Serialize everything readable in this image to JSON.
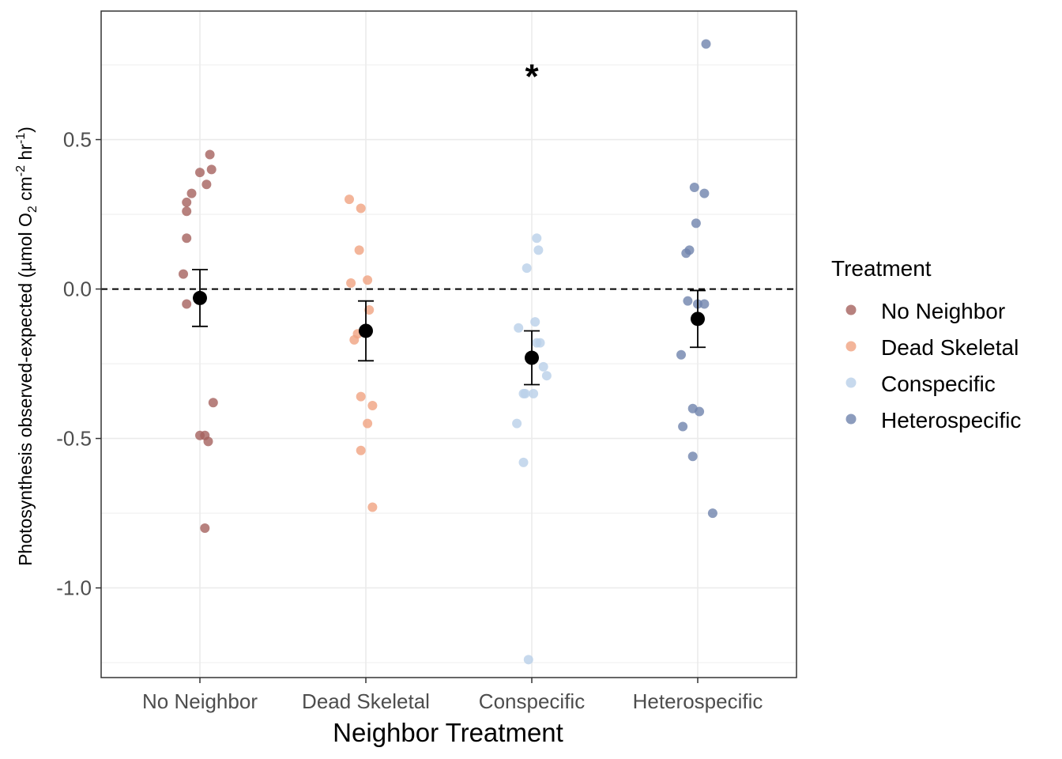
{
  "chart_data": {
    "type": "scatter",
    "title": "",
    "xlabel": "Neighbor Treatment",
    "ylabel": {
      "prefix": "Photosynthesis observed-expected (µmol O",
      "sub": "2",
      "mid": " cm",
      "sup1": "-2",
      "mid2": " hr",
      "sup2": "-1",
      "suffix": ")"
    },
    "categories": [
      "No Neighbor",
      "Dead Skeletal",
      "Conspecific",
      "Heterospecific"
    ],
    "ylim": [
      -1.3,
      0.93
    ],
    "yticks": [
      -1.0,
      -0.5,
      0.0,
      0.5
    ],
    "ytick_labels": [
      "-1.0",
      "-0.5",
      "0.0",
      "0.5"
    ],
    "grid": true,
    "reference_line": {
      "y": 0.0,
      "style": "dashed"
    },
    "legend": {
      "title": "Treatment",
      "position": "right",
      "entries": [
        "No Neighbor",
        "Dead Skeletal",
        "Conspecific",
        "Heterospecific"
      ]
    },
    "annotation": {
      "text": "*",
      "category": "Conspecific",
      "y": 0.73
    },
    "series": [
      {
        "name": "No Neighbor",
        "color": "#a5615e",
        "points": [
          {
            "dx": 0.06,
            "y": 0.45
          },
          {
            "dx": 0.07,
            "y": 0.4
          },
          {
            "dx": 0.0,
            "y": 0.39
          },
          {
            "dx": 0.04,
            "y": 0.35
          },
          {
            "dx": -0.05,
            "y": 0.32
          },
          {
            "dx": -0.08,
            "y": 0.29
          },
          {
            "dx": -0.08,
            "y": 0.26
          },
          {
            "dx": -0.08,
            "y": 0.17
          },
          {
            "dx": -0.1,
            "y": 0.05
          },
          {
            "dx": -0.08,
            "y": -0.05
          },
          {
            "dx": 0.08,
            "y": -0.38
          },
          {
            "dx": 0.0,
            "y": -0.49
          },
          {
            "dx": 0.03,
            "y": -0.49
          },
          {
            "dx": 0.05,
            "y": -0.51
          },
          {
            "dx": 0.03,
            "y": -0.8
          }
        ],
        "mean": -0.03,
        "se": 0.095
      },
      {
        "name": "Dead Skeletal",
        "color": "#f0a381",
        "points": [
          {
            "dx": -0.1,
            "y": 0.3
          },
          {
            "dx": -0.03,
            "y": 0.27
          },
          {
            "dx": -0.04,
            "y": 0.13
          },
          {
            "dx": -0.09,
            "y": 0.02
          },
          {
            "dx": 0.01,
            "y": 0.03
          },
          {
            "dx": 0.02,
            "y": -0.07
          },
          {
            "dx": -0.05,
            "y": -0.15
          },
          {
            "dx": -0.07,
            "y": -0.17
          },
          {
            "dx": -0.03,
            "y": -0.36
          },
          {
            "dx": 0.04,
            "y": -0.39
          },
          {
            "dx": 0.01,
            "y": -0.45
          },
          {
            "dx": -0.03,
            "y": -0.54
          },
          {
            "dx": 0.04,
            "y": -0.73
          }
        ],
        "mean": -0.14,
        "se": 0.1
      },
      {
        "name": "Conspecific",
        "color": "#b9cfe8",
        "points": [
          {
            "dx": 0.03,
            "y": 0.17
          },
          {
            "dx": 0.04,
            "y": 0.13
          },
          {
            "dx": -0.03,
            "y": 0.07
          },
          {
            "dx": 0.02,
            "y": -0.11
          },
          {
            "dx": -0.08,
            "y": -0.13
          },
          {
            "dx": 0.03,
            "y": -0.18
          },
          {
            "dx": 0.05,
            "y": -0.18
          },
          {
            "dx": 0.07,
            "y": -0.26
          },
          {
            "dx": 0.09,
            "y": -0.29
          },
          {
            "dx": -0.05,
            "y": -0.35
          },
          {
            "dx": -0.04,
            "y": -0.35
          },
          {
            "dx": 0.01,
            "y": -0.35
          },
          {
            "dx": -0.09,
            "y": -0.45
          },
          {
            "dx": -0.05,
            "y": -0.58
          },
          {
            "dx": -0.02,
            "y": -1.24
          }
        ],
        "mean": -0.23,
        "se": 0.09
      },
      {
        "name": "Heterospecific",
        "color": "#6f83ad",
        "points": [
          {
            "dx": 0.05,
            "y": 0.82
          },
          {
            "dx": -0.02,
            "y": 0.34
          },
          {
            "dx": 0.04,
            "y": 0.32
          },
          {
            "dx": -0.01,
            "y": 0.22
          },
          {
            "dx": -0.05,
            "y": 0.13
          },
          {
            "dx": -0.07,
            "y": 0.12
          },
          {
            "dx": -0.06,
            "y": -0.04
          },
          {
            "dx": 0.0,
            "y": -0.05
          },
          {
            "dx": 0.04,
            "y": -0.05
          },
          {
            "dx": -0.1,
            "y": -0.22
          },
          {
            "dx": -0.03,
            "y": -0.4
          },
          {
            "dx": 0.01,
            "y": -0.41
          },
          {
            "dx": -0.09,
            "y": -0.46
          },
          {
            "dx": -0.03,
            "y": -0.56
          },
          {
            "dx": 0.09,
            "y": -0.75
          }
        ],
        "mean": -0.1,
        "se": 0.095
      }
    ]
  }
}
